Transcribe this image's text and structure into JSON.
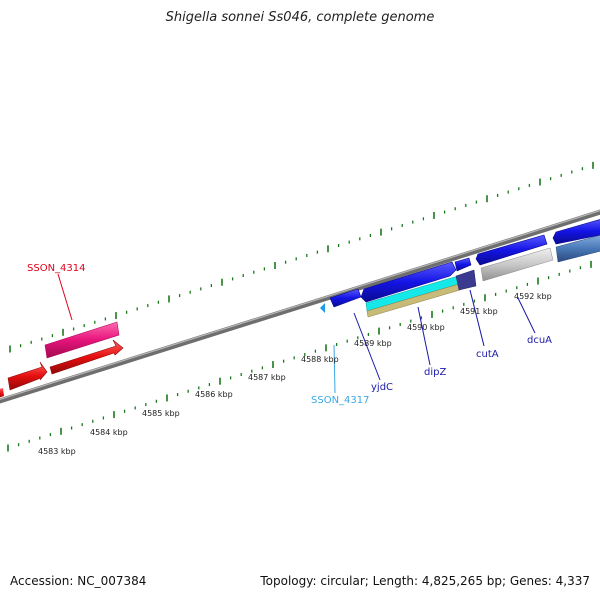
{
  "title": "Shigella sonnei Ss046, complete genome",
  "footer": {
    "accession": "Accession: NC_007384",
    "summary": "Topology: circular; Length: 4,825,265 bp; Genes: 4,337"
  },
  "scale_labels": [
    "4583 kbp",
    "4584 kbp",
    "4585 kbp",
    "4586 kbp",
    "4587 kbp",
    "4588 kbp",
    "4589 kbp",
    "4590 kbp",
    "4591 kbp",
    "4592 kbp"
  ],
  "gene_labels": [
    {
      "text": "SSON_4314",
      "color": "#e0001b"
    },
    {
      "text": "SSON_4317",
      "color": "#3aa7e0"
    },
    {
      "text": "yjdC",
      "color": "#1a1aa8"
    },
    {
      "text": "dipZ",
      "color": "#1a1aa8"
    },
    {
      "text": "cutA",
      "color": "#1a1aa8"
    },
    {
      "text": "dcuA",
      "color": "#1a1aa8"
    }
  ],
  "colors": {
    "backbone": "#8a8a8a",
    "tick": "#1a7a1a",
    "feature_blue": "#1414e6",
    "feature_red": "#e60f0f",
    "feature_pink": "#e6147a",
    "feature_cyan": "#10e8e8",
    "feature_khaki": "#c8bb78",
    "feature_purple": "#4a4aa0",
    "feature_gray": "#c8c8c8",
    "feature_steel": "#4a7ab8"
  }
}
